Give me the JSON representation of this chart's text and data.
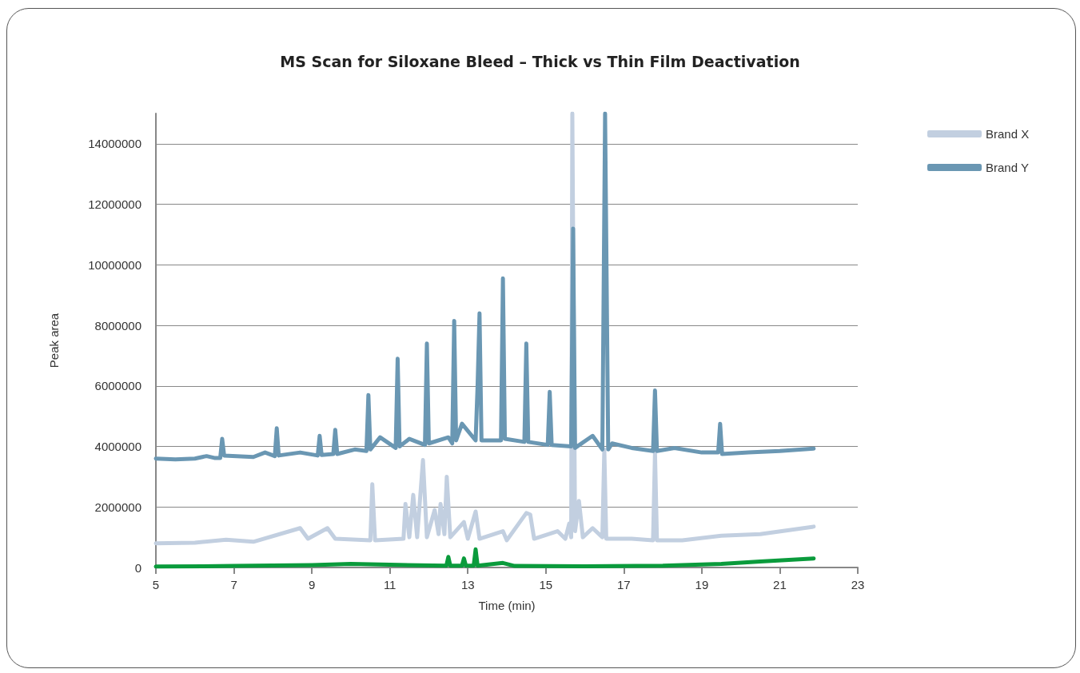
{
  "chart_data": {
    "type": "line",
    "title": "MS Scan for Siloxane Bleed – Thick vs Thin Film Deactivation",
    "xlabel": "Time (min)",
    "ylabel": "Peak area",
    "xlim": [
      5,
      23
    ],
    "xticks": [
      5,
      7,
      9,
      11,
      13,
      15,
      17,
      19,
      21,
      23
    ],
    "ylim": [
      0,
      15000000
    ],
    "yticks": [
      0,
      2000000,
      4000000,
      6000000,
      8000000,
      10000000,
      12000000,
      14000000
    ],
    "grid": "y",
    "legend": "top right",
    "marker": "none",
    "line_style": "solid",
    "series": [
      {
        "color": "#0a9b3c",
        "x": [
          5,
          7,
          9,
          10,
          11,
          12.45,
          12.5,
          12.55,
          12.85,
          12.9,
          12.95,
          13.15,
          13.2,
          13.25,
          13.9,
          14.2,
          16,
          18,
          19.5,
          20.5,
          21.87
        ],
        "values": [
          30000,
          50000,
          80000,
          120000,
          90000,
          60000,
          350000,
          60000,
          60000,
          300000,
          60000,
          60000,
          600000,
          60000,
          150000,
          50000,
          40000,
          60000,
          120000,
          200000,
          300000
        ]
      },
      {
        "name": "Brand X",
        "color": "#c2cfe0",
        "x": [
          5,
          6,
          6.8,
          7.5,
          8.7,
          8.9,
          9.4,
          9.6,
          10.5,
          10.55,
          10.62,
          11.35,
          11.4,
          11.5,
          11.6,
          11.7,
          11.85,
          11.95,
          12.15,
          12.25,
          12.3,
          12.4,
          12.46,
          12.55,
          12.9,
          13.0,
          13.2,
          13.3,
          13.9,
          14.0,
          14.5,
          14.6,
          14.7,
          15.3,
          15.5,
          15.6,
          15.65,
          15.68,
          15.75,
          15.85,
          15.95,
          16.2,
          16.45,
          16.5,
          16.55,
          17.2,
          17.75,
          17.8,
          17.85,
          18.5,
          19.5,
          20.5,
          21.87
        ],
        "values": [
          800000,
          820000,
          920000,
          850000,
          1300000,
          950000,
          1300000,
          950000,
          900000,
          2750000,
          900000,
          950000,
          2100000,
          1000000,
          2400000,
          1000000,
          3550000,
          1000000,
          1900000,
          1100000,
          2100000,
          1100000,
          3000000,
          1000000,
          1500000,
          950000,
          1850000,
          950000,
          1200000,
          900000,
          1800000,
          1750000,
          950000,
          1200000,
          950000,
          1450000,
          1000000,
          15000000,
          1200000,
          2200000,
          1000000,
          1300000,
          1000000,
          3900000,
          950000,
          950000,
          900000,
          3800000,
          900000,
          900000,
          1050000,
          1100000,
          1350000
        ]
      },
      {
        "name": "Brand Y",
        "color": "#6a97b3",
        "x": [
          5,
          5.5,
          6,
          6.3,
          6.5,
          6.65,
          6.7,
          6.75,
          7.5,
          7.8,
          8.05,
          8.1,
          8.15,
          8.7,
          9.15,
          9.2,
          9.25,
          9.55,
          9.6,
          9.65,
          10.1,
          10.4,
          10.45,
          10.5,
          10.75,
          11.15,
          11.2,
          11.25,
          11.5,
          11.9,
          11.95,
          12.0,
          12.5,
          12.6,
          12.65,
          12.7,
          12.85,
          13.2,
          13.25,
          13.3,
          13.35,
          13.85,
          13.9,
          13.95,
          14.45,
          14.5,
          14.55,
          15.05,
          15.1,
          15.15,
          15.65,
          15.7,
          15.75,
          16.2,
          16.45,
          16.52,
          16.6,
          16.7,
          17.2,
          17.75,
          17.8,
          17.85,
          18.3,
          19,
          19.42,
          19.47,
          19.52,
          20.2,
          21,
          21.87
        ],
        "values": [
          3600000,
          3570000,
          3600000,
          3680000,
          3620000,
          3620000,
          4250000,
          3700000,
          3650000,
          3800000,
          3680000,
          4600000,
          3700000,
          3800000,
          3700000,
          4350000,
          3720000,
          3750000,
          4550000,
          3750000,
          3900000,
          3850000,
          5700000,
          3900000,
          4300000,
          3950000,
          6900000,
          4000000,
          4250000,
          4050000,
          7400000,
          4100000,
          4300000,
          4100000,
          8150000,
          4200000,
          4750000,
          4200000,
          6000000,
          8400000,
          4200000,
          4200000,
          9550000,
          4250000,
          4150000,
          7400000,
          4150000,
          4050000,
          5800000,
          4050000,
          4000000,
          11200000,
          3950000,
          4350000,
          3900000,
          15000000,
          3900000,
          4100000,
          3950000,
          3850000,
          5850000,
          3850000,
          3950000,
          3800000,
          3800000,
          4750000,
          3750000,
          3800000,
          3850000,
          3930000
        ]
      }
    ]
  }
}
